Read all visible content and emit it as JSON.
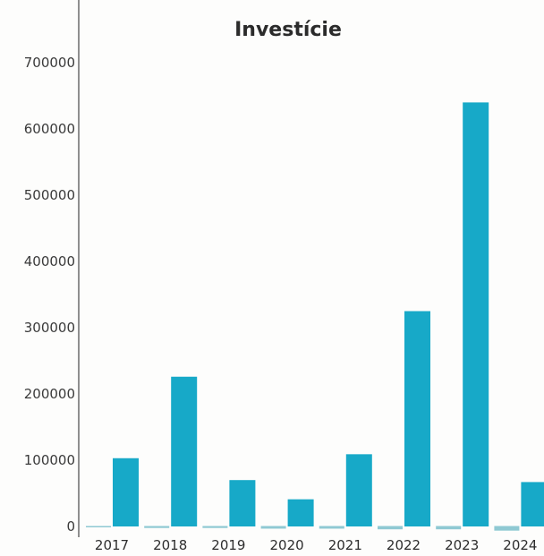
{
  "chart_data": {
    "type": "bar",
    "title": "Investície",
    "xlabel": "",
    "ylabel": "",
    "categories": [
      "2017",
      "2018",
      "2019",
      "2020",
      "2021",
      "2022",
      "2023",
      "2024"
    ],
    "series": [
      {
        "values": [
          -2000,
          -3000,
          -3000,
          -4000,
          -4000,
          -5000,
          -5000,
          -7000
        ]
      },
      {
        "values": [
          103000,
          226000,
          70000,
          41000,
          109000,
          325000,
          640000,
          67000
        ]
      }
    ],
    "ylim": [
      0,
      700000
    ],
    "yticks": [
      0,
      100000,
      200000,
      300000,
      400000,
      500000,
      600000,
      700000
    ],
    "ytick_labels": [
      "0",
      "100000",
      "200000",
      "300000",
      "400000",
      "500000",
      "600000",
      "700000"
    ],
    "grid": false,
    "colors": {
      "bar": "#17a9c8",
      "bar_secondary": "#8fc9d3",
      "axis": "#6b6b6b"
    }
  }
}
